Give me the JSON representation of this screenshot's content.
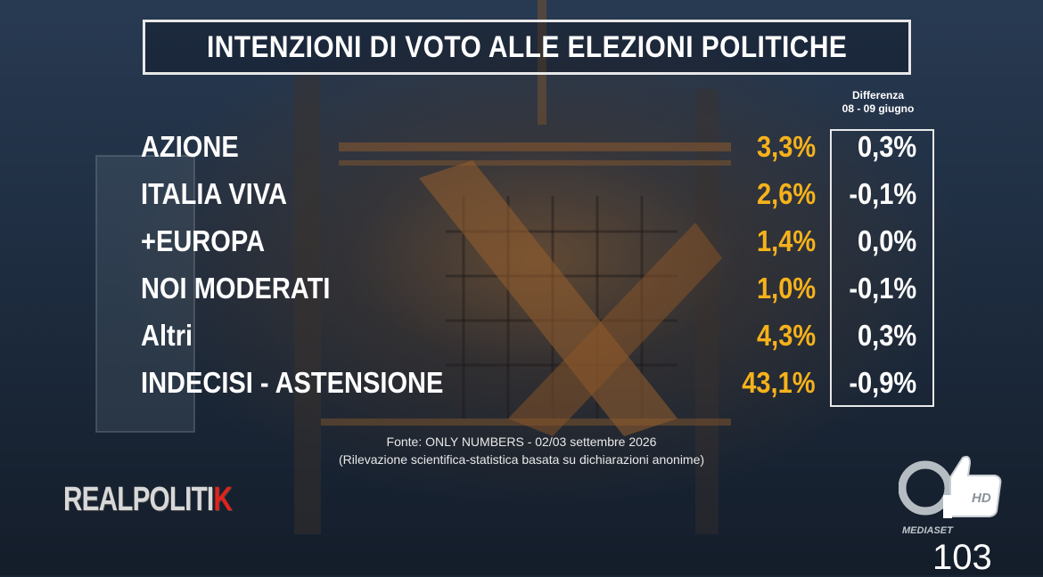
{
  "title": "INTENZIONI DI VOTO ALLE ELEZIONI POLITICHE",
  "diff_header": {
    "line1": "Differenza",
    "line2": "08 - 09 giugno"
  },
  "rows": [
    {
      "party": "AZIONE",
      "pct": "3,3%",
      "diff": "0,3%"
    },
    {
      "party": "ITALIA VIVA",
      "pct": "2,6%",
      "diff": "-0,1%"
    },
    {
      "party": "+EUROPA",
      "pct": "1,4%",
      "diff": "0,0%"
    },
    {
      "party": "NOI MODERATI",
      "pct": "1,0%",
      "diff": "-0,1%"
    },
    {
      "party": "Altri",
      "pct": "4,3%",
      "diff": "0,3%"
    },
    {
      "party": "INDECISI - ASTENSIONE",
      "pct": "43,1%",
      "diff": "-0,9%"
    }
  ],
  "source": {
    "line1": "Fonte: ONLY NUMBERS - 02/03 settembre 2026",
    "line2": "(Rilevazione scientifica-statistica basata su dichiarazioni anonime)"
  },
  "logo": {
    "text_main": "REALPOLITI",
    "text_accent": "K"
  },
  "channel": {
    "hd_label": "HD",
    "network": "MEDIASET",
    "number": "103"
  },
  "colors": {
    "percent": "#f6b21b",
    "accent_red": "#e0231b",
    "text": "#ffffff"
  }
}
